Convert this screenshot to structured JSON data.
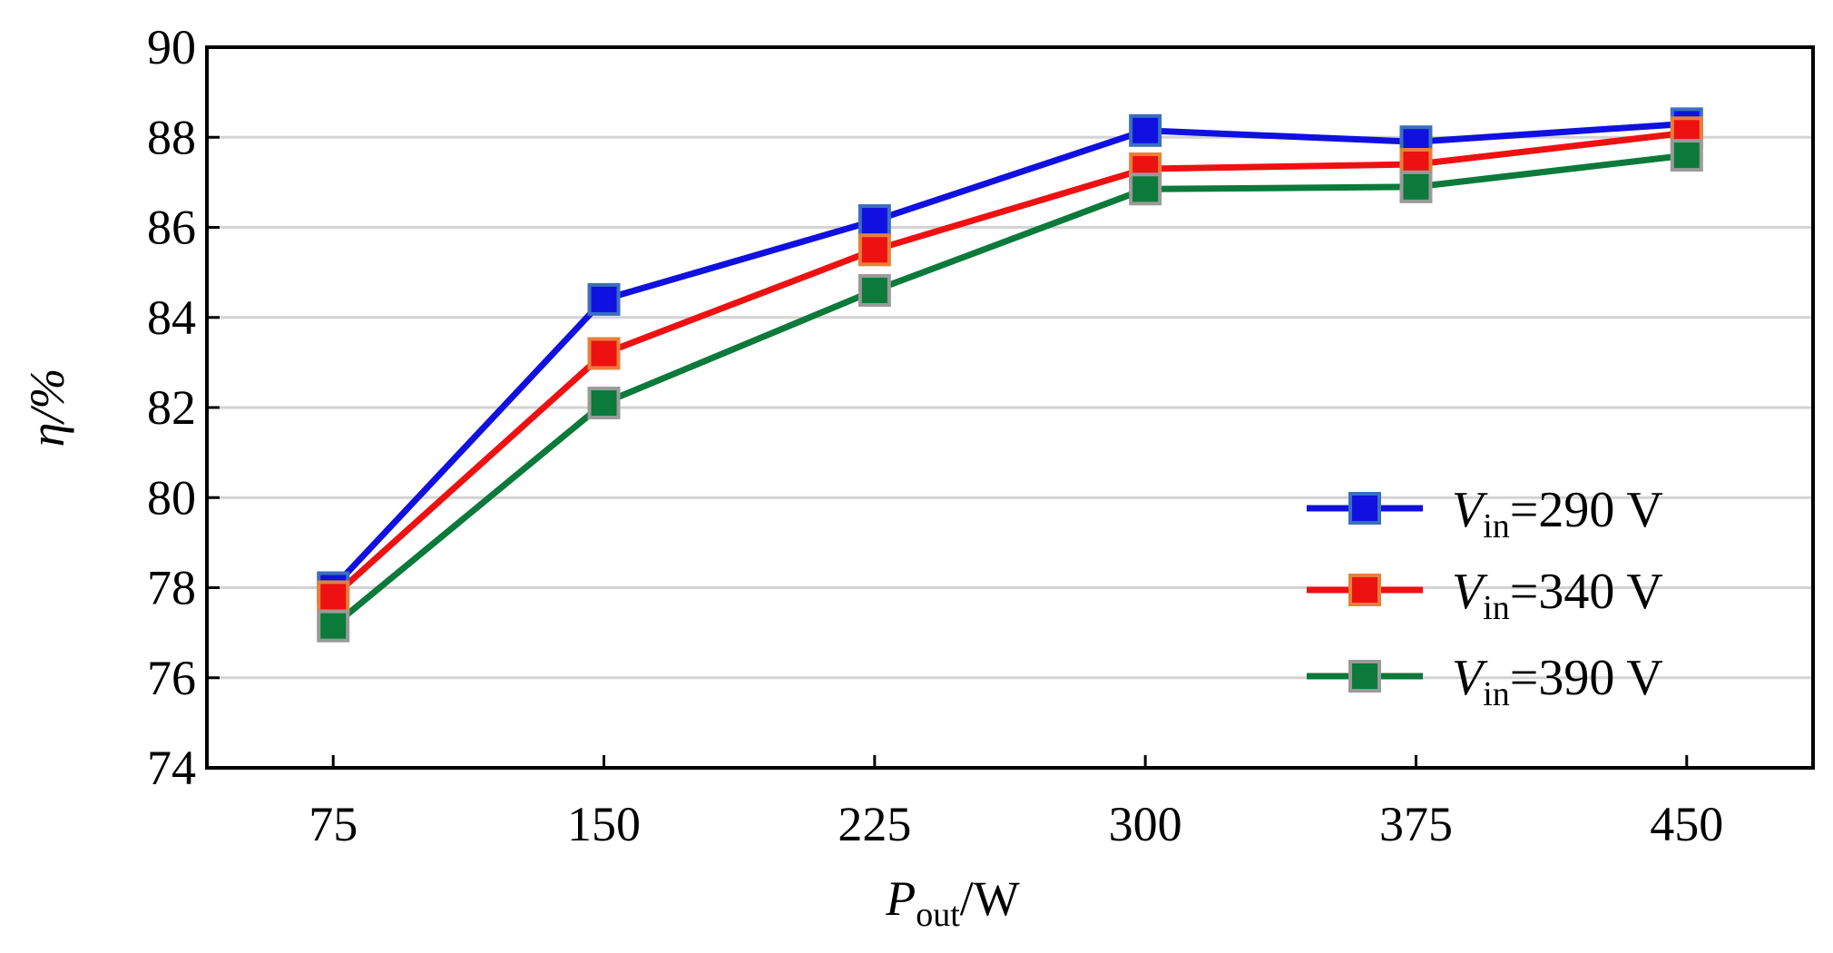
{
  "chart_data": {
    "type": "line",
    "x": [
      75,
      150,
      225,
      300,
      375,
      450
    ],
    "xlim": [
      40,
      485
    ],
    "ylim": [
      74,
      90
    ],
    "yticks": [
      74,
      76,
      78,
      80,
      82,
      84,
      86,
      88,
      90
    ],
    "xlabel": {
      "main": "P",
      "sub": "out",
      "rest": "/W"
    },
    "ylabel": "η/%",
    "grid": "horizontal",
    "legend_position": "lower-right",
    "series": [
      {
        "name": "V_in=290 V",
        "label": {
          "main": "V",
          "sub": "in",
          "rest": "=290 V"
        },
        "color": "#1010e0",
        "marker_edge": "#3a6fbf",
        "values": [
          78.0,
          84.4,
          86.15,
          88.15,
          87.9,
          88.3
        ]
      },
      {
        "name": "V_in=340 V",
        "label": {
          "main": "V",
          "sub": "in",
          "rest": "=340 V"
        },
        "color": "#ee1111",
        "marker_edge": "#e8803a",
        "values": [
          77.8,
          83.2,
          85.5,
          87.3,
          87.4,
          88.1
        ]
      },
      {
        "name": "V_in=390 V",
        "label": {
          "main": "V",
          "sub": "in",
          "rest": "=390 V"
        },
        "color": "#0b7a3a",
        "marker_edge": "#9a9a9a",
        "values": [
          77.15,
          82.1,
          84.6,
          86.85,
          86.9,
          87.6
        ]
      }
    ]
  }
}
